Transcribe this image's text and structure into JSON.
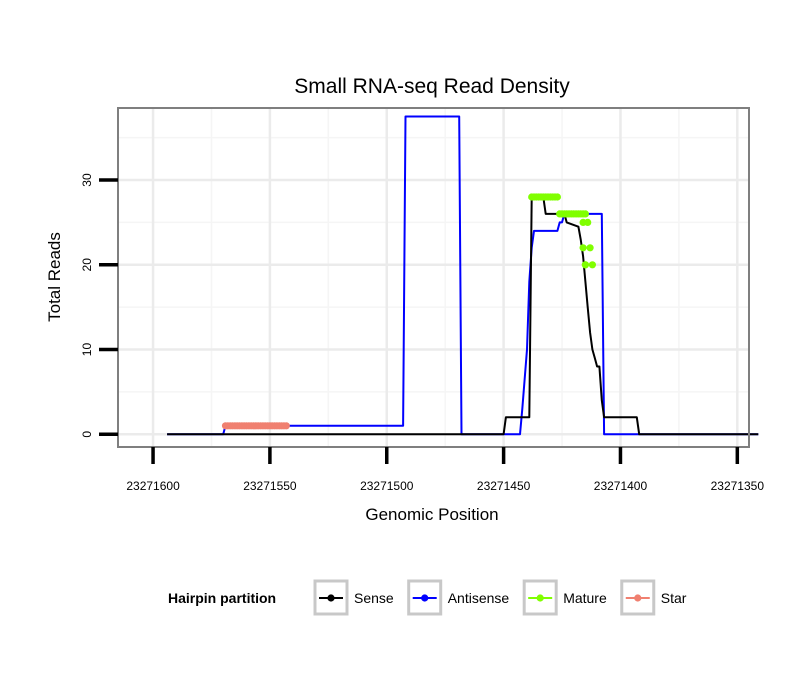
{
  "chart_data": {
    "type": "line",
    "title": "Small RNA-seq Read Density",
    "xlabel": "Genomic Position",
    "ylabel": "Total Reads",
    "xlim": [
      23271615,
      23271345
    ],
    "x_reversed": true,
    "ylim": [
      -1.5,
      38.5
    ],
    "grid": true,
    "x_ticks": [
      23271600,
      23271550,
      23271500,
      23271450,
      23271400,
      23271350
    ],
    "x_tick_labels": [
      "23271600",
      "23271550",
      "23271500",
      "23271450",
      "23271400",
      "23271350"
    ],
    "y_ticks": [
      0,
      10,
      20,
      30
    ],
    "y_tick_labels": [
      "0",
      "10",
      "20",
      "30"
    ],
    "legend": {
      "title": "Hairpin partition",
      "position": "bottom",
      "entries": [
        {
          "name": "Sense",
          "color": "#000000"
        },
        {
          "name": "Antisense",
          "color": "#0000ff"
        },
        {
          "name": "Mature",
          "color": "#80ff00"
        },
        {
          "name": "Star",
          "color": "#f08070"
        }
      ]
    },
    "series": [
      {
        "name": "Sense",
        "color": "#000000",
        "kind": "line",
        "x": [
          23271594,
          23271495,
          23271494,
          23271450,
          23271449,
          23271439,
          23271438,
          23271433,
          23271432,
          23271424,
          23271423,
          23271418,
          23271417,
          23271416,
          23271415,
          23271414,
          23271413,
          23271412,
          23271411,
          23271410,
          23271409,
          23271408,
          23271407,
          23271406,
          23271405,
          23271393,
          23271392,
          23271341
        ],
        "y": [
          0,
          0,
          0,
          0,
          2,
          2,
          28,
          28,
          26,
          26,
          25,
          24.5,
          23,
          21,
          18,
          15,
          12,
          10,
          9,
          8,
          8,
          4,
          2,
          2,
          2,
          2,
          0,
          0
        ]
      },
      {
        "name": "Antisense",
        "color": "#0000ff",
        "kind": "line",
        "x": [
          23271594,
          23271570,
          23271569,
          23271564,
          23271563,
          23271500,
          23271499,
          23271493,
          23271492,
          23271469,
          23271468,
          23271443,
          23271442,
          23271440,
          23271439,
          23271438,
          23271437,
          23271432,
          23271431,
          23271427,
          23271426,
          23271425,
          23271424,
          23271421,
          23271420,
          23271408,
          23271407,
          23271341
        ],
        "y": [
          0,
          0,
          1,
          1,
          1,
          1,
          1,
          1,
          37.5,
          37.5,
          0,
          0,
          3,
          10,
          18,
          22,
          24,
          24,
          24,
          24,
          25,
          25,
          26,
          26,
          26,
          26,
          0,
          0
        ]
      },
      {
        "name": "Mature",
        "color": "#80ff00",
        "kind": "points",
        "x": [
          23271438,
          23271437,
          23271436,
          23271435,
          23271434,
          23271433,
          23271432,
          23271431,
          23271430,
          23271429,
          23271428,
          23271427,
          23271426,
          23271425,
          23271424,
          23271423,
          23271422,
          23271421,
          23271420,
          23271419,
          23271418,
          23271417,
          23271416,
          23271415,
          23271414,
          23271413,
          23271412,
          23271416,
          23271416,
          23271415,
          23271415
        ],
        "y": [
          28,
          28,
          28,
          28,
          28,
          28,
          28,
          28,
          28,
          28,
          28,
          28,
          26,
          26,
          26,
          26,
          26,
          26,
          26,
          26,
          26,
          26,
          26,
          26,
          25,
          22,
          20,
          25,
          22,
          20,
          20
        ]
      },
      {
        "name": "Star",
        "color": "#f08070",
        "kind": "points",
        "x": [
          23271569,
          23271568,
          23271567,
          23271566,
          23271565,
          23271564,
          23271563,
          23271562,
          23271561,
          23271560,
          23271559,
          23271558,
          23271557,
          23271556,
          23271555,
          23271554,
          23271553,
          23271552,
          23271551,
          23271550,
          23271549,
          23271548,
          23271547,
          23271546,
          23271545,
          23271544,
          23271543
        ],
        "y": [
          1,
          1,
          1,
          1,
          1,
          1,
          1,
          1,
          1,
          1,
          1,
          1,
          1,
          1,
          1,
          1,
          1,
          1,
          1,
          1,
          1,
          1,
          1,
          1,
          1,
          1,
          1
        ]
      }
    ]
  }
}
